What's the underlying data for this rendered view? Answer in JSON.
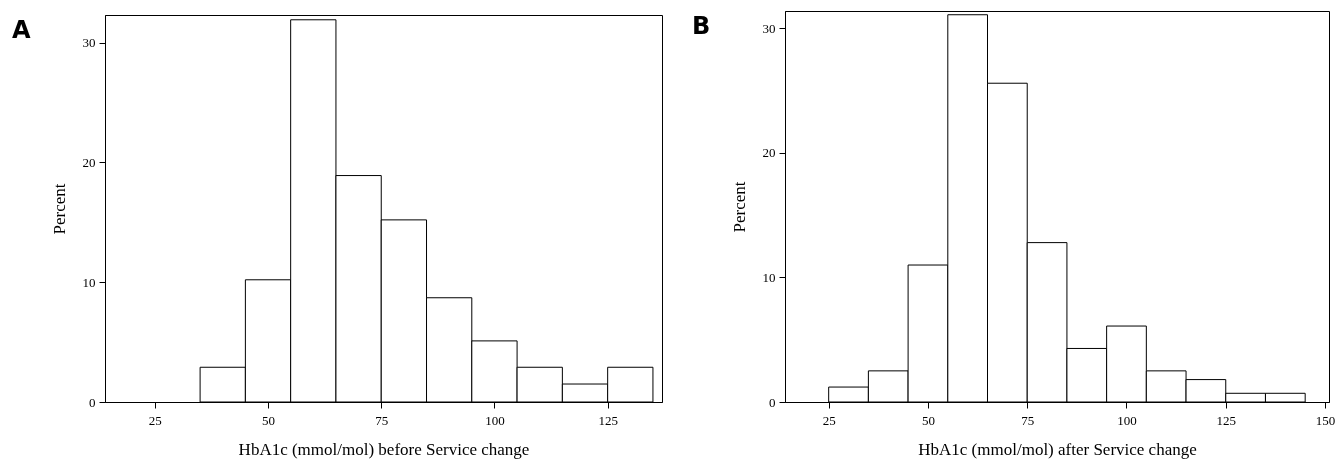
{
  "chart_data": [
    {
      "type": "histogram",
      "title": "A",
      "xlabel": "HbA1c (mmol/mol) before Service change",
      "ylabel": "Percent",
      "bins": [
        35,
        45,
        55,
        65,
        75,
        85,
        95,
        105,
        115,
        125,
        135
      ],
      "values": [
        2.9,
        10.2,
        31.9,
        18.9,
        15.2,
        8.7,
        5.1,
        2.9,
        1.5,
        2.9
      ],
      "xlim": [
        14,
        137
      ],
      "ylim": [
        0,
        32.3
      ],
      "xticks": [
        25,
        50,
        75,
        100,
        125
      ],
      "yticks": [
        0,
        10,
        20,
        30
      ]
    },
    {
      "type": "histogram",
      "title": "B",
      "xlabel": "HbA1c (mmol/mol) after Service change",
      "ylabel": "Percent",
      "bins": [
        25,
        35,
        45,
        55,
        65,
        75,
        85,
        95,
        105,
        115,
        125,
        135,
        145
      ],
      "values": [
        1.2,
        2.5,
        11.0,
        31.1,
        25.6,
        12.8,
        4.3,
        6.1,
        2.5,
        1.8,
        0.7,
        0.7
      ],
      "xlim": [
        14,
        151
      ],
      "ylim": [
        0,
        31.4
      ],
      "xticks": [
        25,
        50,
        75,
        100,
        125,
        150
      ],
      "yticks": [
        0,
        10,
        20,
        30
      ]
    }
  ]
}
